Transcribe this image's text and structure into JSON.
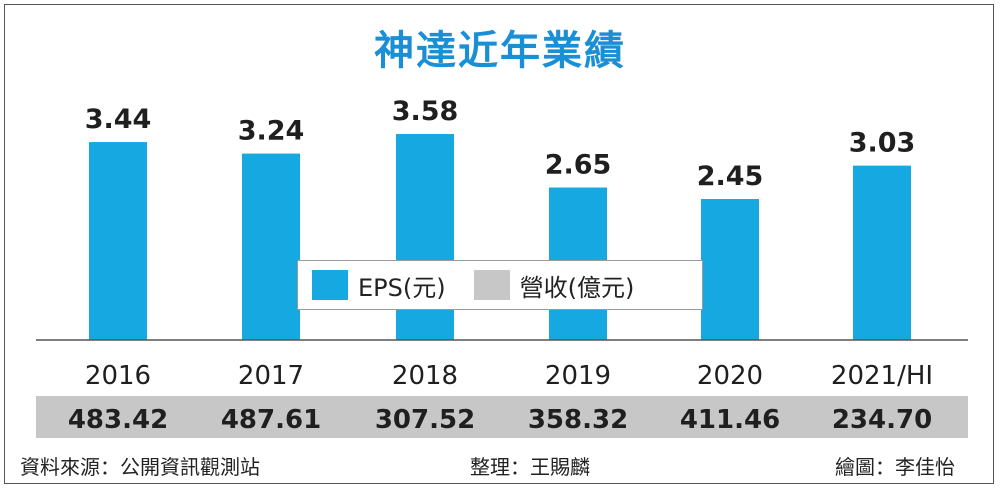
{
  "title": "神達近年業績",
  "legend": {
    "eps_label": "EPS(元)",
    "revenue_label": "營收(億元)"
  },
  "colors": {
    "eps": "#16a9e1",
    "revenue": "#c7c7c7",
    "title": "#1a8fd6"
  },
  "footer": {
    "source": "資料來源：公開資訊觀測站",
    "editor": "整理：王賜麟",
    "illustrator": "繪圖：李佳怡"
  },
  "chart_data": {
    "type": "bar",
    "title": "神達近年業績",
    "categories": [
      "2016",
      "2017",
      "2018",
      "2019",
      "2020",
      "2021/HI"
    ],
    "series": [
      {
        "name": "EPS(元)",
        "values": [
          3.44,
          3.24,
          3.58,
          2.65,
          2.45,
          3.03
        ]
      },
      {
        "name": "營收(億元)",
        "values": [
          483.42,
          487.61,
          307.52,
          358.32,
          411.46,
          234.7
        ]
      }
    ],
    "eps_labels": [
      "3.44",
      "3.24",
      "3.58",
      "2.65",
      "2.45",
      "3.03"
    ],
    "revenue_labels": [
      "483.42",
      "487.61",
      "307.52",
      "358.32",
      "411.46",
      "234.70"
    ],
    "xlabel": "",
    "ylabel": "",
    "grid": false,
    "legend_position": "center"
  }
}
